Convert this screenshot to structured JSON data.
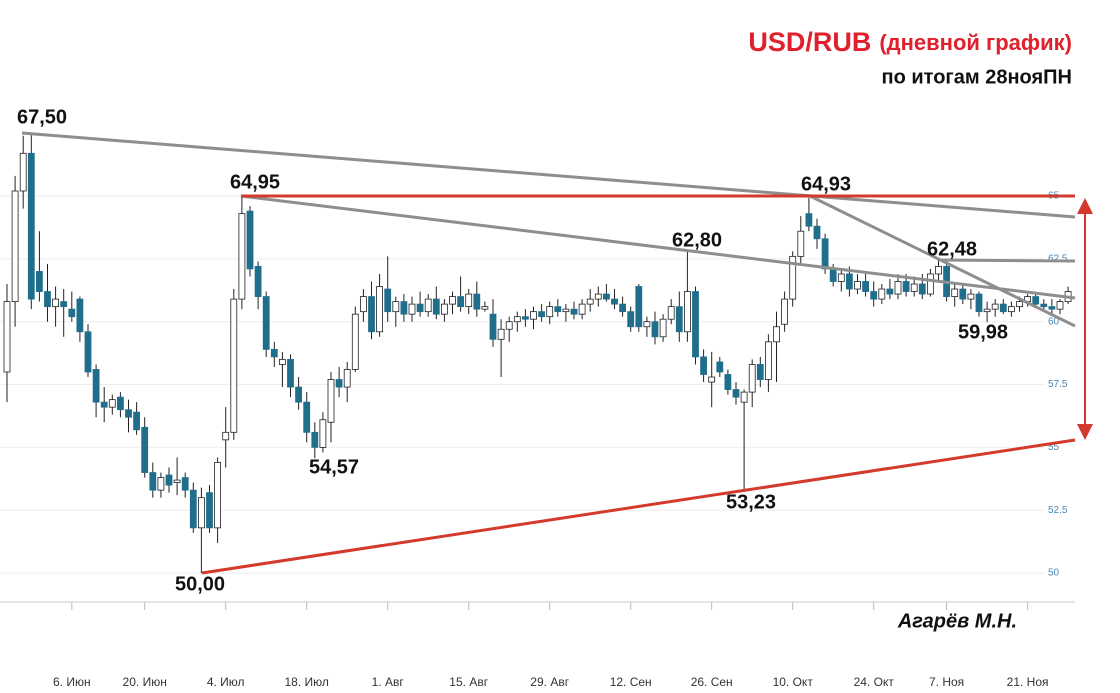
{
  "chart_data": {
    "type": "candlestick",
    "title": "USD/RUB",
    "title_note": "(дневной график)",
    "subtitle": "по итогам 28нояПН",
    "author": "Агарёв М.Н.",
    "annotations": [
      "67,50",
      "64,95",
      "54,57",
      "50,00",
      "62,80",
      "53,23",
      "64,93",
      "62,48",
      "59,98"
    ],
    "up_color": "#ffffff",
    "down_color": "#1f6e8c",
    "grid": true,
    "ylim": [
      48.85,
      68.82
    ],
    "yticks": [
      50,
      52.5,
      55,
      57.5,
      60,
      62.5,
      65
    ],
    "categories": [
      null,
      null,
      null,
      null,
      null,
      null,
      null,
      null,
      "6. Июн",
      null,
      null,
      null,
      null,
      null,
      null,
      null,
      null,
      "20. Июн",
      null,
      null,
      null,
      null,
      null,
      null,
      null,
      null,
      null,
      "4. Июл",
      null,
      null,
      null,
      null,
      null,
      null,
      null,
      null,
      null,
      "18. Июл",
      null,
      null,
      null,
      null,
      null,
      null,
      null,
      null,
      null,
      "1. Авг",
      null,
      null,
      null,
      null,
      null,
      null,
      null,
      null,
      null,
      "15. Авг",
      null,
      null,
      null,
      null,
      null,
      null,
      null,
      null,
      null,
      "29. Авг",
      null,
      null,
      null,
      null,
      null,
      null,
      null,
      null,
      null,
      "12. Сен",
      null,
      null,
      null,
      null,
      null,
      null,
      null,
      null,
      null,
      "26. Сен",
      null,
      null,
      null,
      null,
      null,
      null,
      null,
      null,
      null,
      "10. Окт",
      null,
      null,
      null,
      null,
      null,
      null,
      null,
      null,
      null,
      "24. Окт",
      null,
      null,
      null,
      null,
      null,
      null,
      null,
      null,
      "7. Ноя",
      null,
      null,
      null,
      null,
      null,
      null,
      null,
      null,
      null,
      "21. Ноя",
      null,
      null,
      null,
      null,
      null
    ],
    "ohlc": [
      [
        58.0,
        61.5,
        56.8,
        60.8
      ],
      [
        60.8,
        65.8,
        59.8,
        65.2
      ],
      [
        65.2,
        67.4,
        64.5,
        66.7
      ],
      [
        66.7,
        67.5,
        60.5,
        60.9
      ],
      [
        62.0,
        63.6,
        60.8,
        61.2
      ],
      [
        61.2,
        62.3,
        60.0,
        60.6
      ],
      [
        60.6,
        61.4,
        59.8,
        60.9
      ],
      [
        60.8,
        61.3,
        59.4,
        60.6
      ],
      [
        60.5,
        61.2,
        60.0,
        60.2
      ],
      [
        60.9,
        61.0,
        59.2,
        59.6
      ],
      [
        59.6,
        59.9,
        57.8,
        58.0
      ],
      [
        58.1,
        58.3,
        56.2,
        56.8
      ],
      [
        56.8,
        57.4,
        56.0,
        56.6
      ],
      [
        56.6,
        57.1,
        56.3,
        56.9
      ],
      [
        57.0,
        57.2,
        56.2,
        56.5
      ],
      [
        56.5,
        56.9,
        55.6,
        56.2
      ],
      [
        56.4,
        56.8,
        55.5,
        55.7
      ],
      [
        55.8,
        56.2,
        53.8,
        54.0
      ],
      [
        54.0,
        54.4,
        53.0,
        53.3
      ],
      [
        53.3,
        54.0,
        53.0,
        53.8
      ],
      [
        53.9,
        54.2,
        53.2,
        53.5
      ],
      [
        53.6,
        54.6,
        53.1,
        53.7
      ],
      [
        53.8,
        54.0,
        53.0,
        53.3
      ],
      [
        53.3,
        53.6,
        51.6,
        51.8
      ],
      [
        51.8,
        53.4,
        50.0,
        53.0
      ],
      [
        53.2,
        53.5,
        51.6,
        51.8
      ],
      [
        51.8,
        54.6,
        51.2,
        54.4
      ],
      [
        55.3,
        56.6,
        54.2,
        55.6
      ],
      [
        55.6,
        61.3,
        55.3,
        60.9
      ],
      [
        60.9,
        64.95,
        60.5,
        64.3
      ],
      [
        64.4,
        64.6,
        61.8,
        62.1
      ],
      [
        62.2,
        62.4,
        60.5,
        61.0
      ],
      [
        61.0,
        61.2,
        58.6,
        58.9
      ],
      [
        58.9,
        59.2,
        58.2,
        58.6
      ],
      [
        58.3,
        58.8,
        57.4,
        58.5
      ],
      [
        58.5,
        58.7,
        57.0,
        57.4
      ],
      [
        57.4,
        57.8,
        56.5,
        56.8
      ],
      [
        56.8,
        57.2,
        55.2,
        55.6
      ],
      [
        55.6,
        56.0,
        54.57,
        55.0
      ],
      [
        55.0,
        56.4,
        54.8,
        56.1
      ],
      [
        56.0,
        58.0,
        55.2,
        57.7
      ],
      [
        57.7,
        58.2,
        57.0,
        57.4
      ],
      [
        57.4,
        58.4,
        56.8,
        58.1
      ],
      [
        58.1,
        60.6,
        58.0,
        60.3
      ],
      [
        60.4,
        61.3,
        60.0,
        61.0
      ],
      [
        61.0,
        61.6,
        59.3,
        59.6
      ],
      [
        59.6,
        61.9,
        59.4,
        61.4
      ],
      [
        61.3,
        62.6,
        60.0,
        60.4
      ],
      [
        60.4,
        61.0,
        59.8,
        60.8
      ],
      [
        60.8,
        61.1,
        60.0,
        60.3
      ],
      [
        60.3,
        61.0,
        60.0,
        60.7
      ],
      [
        60.7,
        61.2,
        60.2,
        60.4
      ],
      [
        60.4,
        61.1,
        60.2,
        60.9
      ],
      [
        60.9,
        61.4,
        60.1,
        60.3
      ],
      [
        60.3,
        60.9,
        60.0,
        60.7
      ],
      [
        60.7,
        61.2,
        60.3,
        61.0
      ],
      [
        61.0,
        61.8,
        60.4,
        60.6
      ],
      [
        60.6,
        61.3,
        60.3,
        61.1
      ],
      [
        61.1,
        61.6,
        60.2,
        60.5
      ],
      [
        60.5,
        60.8,
        60.4,
        60.6
      ],
      [
        60.3,
        60.9,
        59.0,
        59.3
      ],
      [
        59.3,
        60.1,
        57.8,
        59.7
      ],
      [
        59.7,
        60.2,
        59.2,
        60.0
      ],
      [
        60.0,
        60.4,
        59.6,
        60.2
      ],
      [
        60.2,
        60.5,
        59.8,
        60.1
      ],
      [
        60.1,
        60.6,
        59.7,
        60.4
      ],
      [
        60.4,
        60.7,
        60.0,
        60.2
      ],
      [
        60.2,
        60.8,
        59.9,
        60.6
      ],
      [
        60.6,
        60.9,
        60.2,
        60.4
      ],
      [
        60.4,
        60.7,
        60.0,
        60.5
      ],
      [
        60.5,
        60.8,
        60.1,
        60.3
      ],
      [
        60.3,
        60.9,
        60.1,
        60.7
      ],
      [
        60.7,
        61.3,
        60.4,
        60.9
      ],
      [
        60.9,
        61.4,
        60.6,
        61.1
      ],
      [
        61.1,
        61.5,
        60.8,
        60.9
      ],
      [
        60.9,
        61.3,
        60.5,
        60.7
      ],
      [
        60.7,
        61.0,
        60.2,
        60.4
      ],
      [
        60.4,
        60.6,
        59.6,
        59.8
      ],
      [
        61.4,
        61.5,
        59.6,
        59.8
      ],
      [
        59.8,
        60.2,
        59.4,
        60.0
      ],
      [
        60.0,
        60.4,
        59.1,
        59.4
      ],
      [
        59.4,
        60.3,
        59.2,
        60.1
      ],
      [
        60.1,
        60.9,
        59.9,
        60.6
      ],
      [
        60.6,
        61.2,
        59.2,
        59.6
      ],
      [
        59.6,
        62.8,
        59.2,
        61.2
      ],
      [
        61.2,
        61.4,
        58.3,
        58.6
      ],
      [
        58.6,
        58.9,
        57.6,
        57.9
      ],
      [
        57.6,
        58.8,
        56.6,
        57.8
      ],
      [
        58.4,
        58.6,
        57.8,
        58.0
      ],
      [
        57.9,
        58.1,
        57.1,
        57.3
      ],
      [
        57.3,
        57.6,
        56.7,
        57.0
      ],
      [
        56.8,
        57.3,
        53.23,
        57.2
      ],
      [
        57.2,
        58.5,
        56.6,
        58.3
      ],
      [
        58.3,
        58.6,
        57.4,
        57.7
      ],
      [
        57.7,
        59.5,
        57.2,
        59.2
      ],
      [
        59.2,
        60.4,
        57.6,
        59.8
      ],
      [
        59.9,
        61.2,
        59.6,
        60.9
      ],
      [
        60.9,
        62.8,
        60.6,
        62.6
      ],
      [
        62.6,
        64.2,
        62.3,
        63.6
      ],
      [
        64.3,
        64.93,
        63.6,
        63.8
      ],
      [
        63.8,
        64.1,
        62.9,
        63.3
      ],
      [
        63.3,
        63.5,
        61.9,
        62.1
      ],
      [
        62.1,
        62.3,
        61.4,
        61.6
      ],
      [
        61.6,
        62.1,
        61.2,
        61.9
      ],
      [
        61.9,
        62.2,
        61.0,
        61.3
      ],
      [
        61.3,
        61.9,
        61.1,
        61.6
      ],
      [
        61.6,
        61.9,
        61.0,
        61.2
      ],
      [
        61.2,
        61.6,
        60.6,
        60.9
      ],
      [
        60.9,
        61.5,
        60.7,
        61.3
      ],
      [
        61.3,
        61.7,
        60.9,
        61.1
      ],
      [
        61.1,
        61.9,
        60.9,
        61.6
      ],
      [
        61.6,
        61.9,
        61.0,
        61.2
      ],
      [
        61.2,
        61.8,
        61.0,
        61.5
      ],
      [
        61.5,
        61.9,
        60.9,
        61.1
      ],
      [
        61.1,
        62.1,
        61.0,
        61.9
      ],
      [
        61.9,
        62.48,
        61.6,
        62.2
      ],
      [
        62.2,
        62.3,
        60.8,
        61.0
      ],
      [
        61.0,
        61.5,
        60.6,
        61.3
      ],
      [
        61.3,
        61.5,
        60.7,
        60.9
      ],
      [
        60.9,
        61.3,
        60.5,
        61.1
      ],
      [
        61.1,
        61.2,
        60.2,
        60.4
      ],
      [
        60.4,
        60.8,
        59.98,
        60.5
      ],
      [
        60.5,
        60.9,
        60.2,
        60.7
      ],
      [
        60.7,
        60.9,
        60.3,
        60.4
      ],
      [
        60.4,
        60.8,
        60.2,
        60.6
      ],
      [
        60.6,
        61.0,
        60.4,
        60.8
      ],
      [
        60.8,
        61.1,
        60.6,
        61.0
      ],
      [
        61.0,
        61.2,
        60.6,
        60.7
      ],
      [
        60.7,
        60.9,
        60.4,
        60.6
      ],
      [
        60.6,
        60.9,
        60.3,
        60.5
      ],
      [
        60.5,
        60.9,
        60.3,
        60.8
      ],
      [
        60.8,
        61.4,
        60.7,
        61.2
      ]
    ]
  }
}
